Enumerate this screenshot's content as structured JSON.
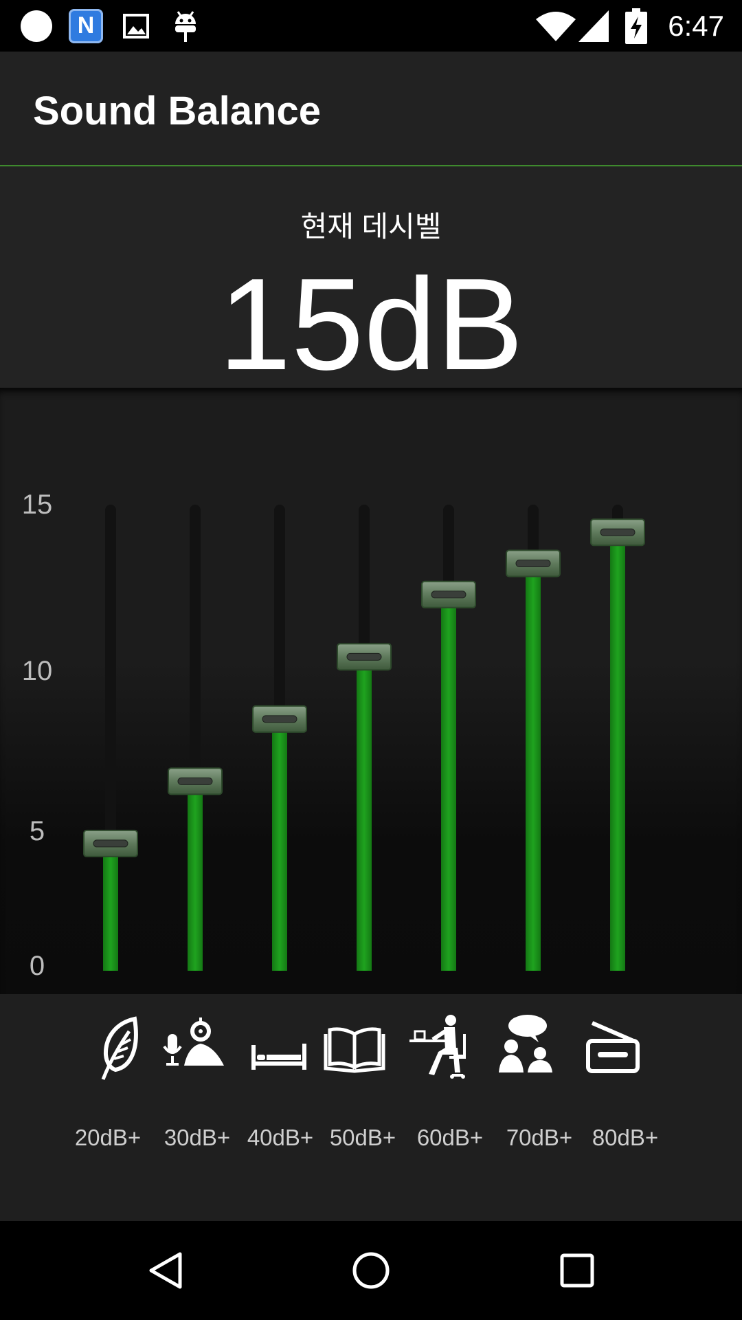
{
  "status_bar": {
    "time": "6:47",
    "icons": [
      "circle-notification-icon",
      "naver-n-icon",
      "image-notification-icon",
      "android-debug-icon",
      "wifi-icon",
      "cell-signal-icon",
      "battery-charging-icon"
    ]
  },
  "app_bar": {
    "title": "Sound Balance"
  },
  "header": {
    "label": "현재 데시벨",
    "value": "15dB"
  },
  "chart_data": {
    "type": "bar",
    "ylim": [
      0,
      15
    ],
    "y_ticks": [
      "0",
      "5",
      "10",
      "15"
    ],
    "categories": [
      "20dB+",
      "30dB+",
      "40dB+",
      "50dB+",
      "60dB+",
      "70dB+",
      "80dB+"
    ],
    "values": [
      4,
      6,
      8,
      10,
      12,
      13,
      14
    ],
    "bar_color": "#1d9a1d",
    "track_color": "#121212"
  },
  "categories": [
    {
      "icon": "leaf-icon",
      "label": "20dB+"
    },
    {
      "icon": "voice-recording-icon",
      "label": "30dB+"
    },
    {
      "icon": "bed-icon",
      "label": "40dB+"
    },
    {
      "icon": "open-book-icon",
      "label": "50dB+"
    },
    {
      "icon": "desk-worker-icon",
      "label": "60dB+"
    },
    {
      "icon": "conversation-icon",
      "label": "70dB+"
    },
    {
      "icon": "radio-icon",
      "label": "80dB+"
    }
  ],
  "nav_bar": {
    "icons": [
      "back-triangle-icon",
      "home-circle-icon",
      "recents-square-icon"
    ]
  },
  "colors": {
    "accent": "#3e8a2e",
    "bar": "#1d9a1d",
    "background": "#1f1f1f"
  }
}
